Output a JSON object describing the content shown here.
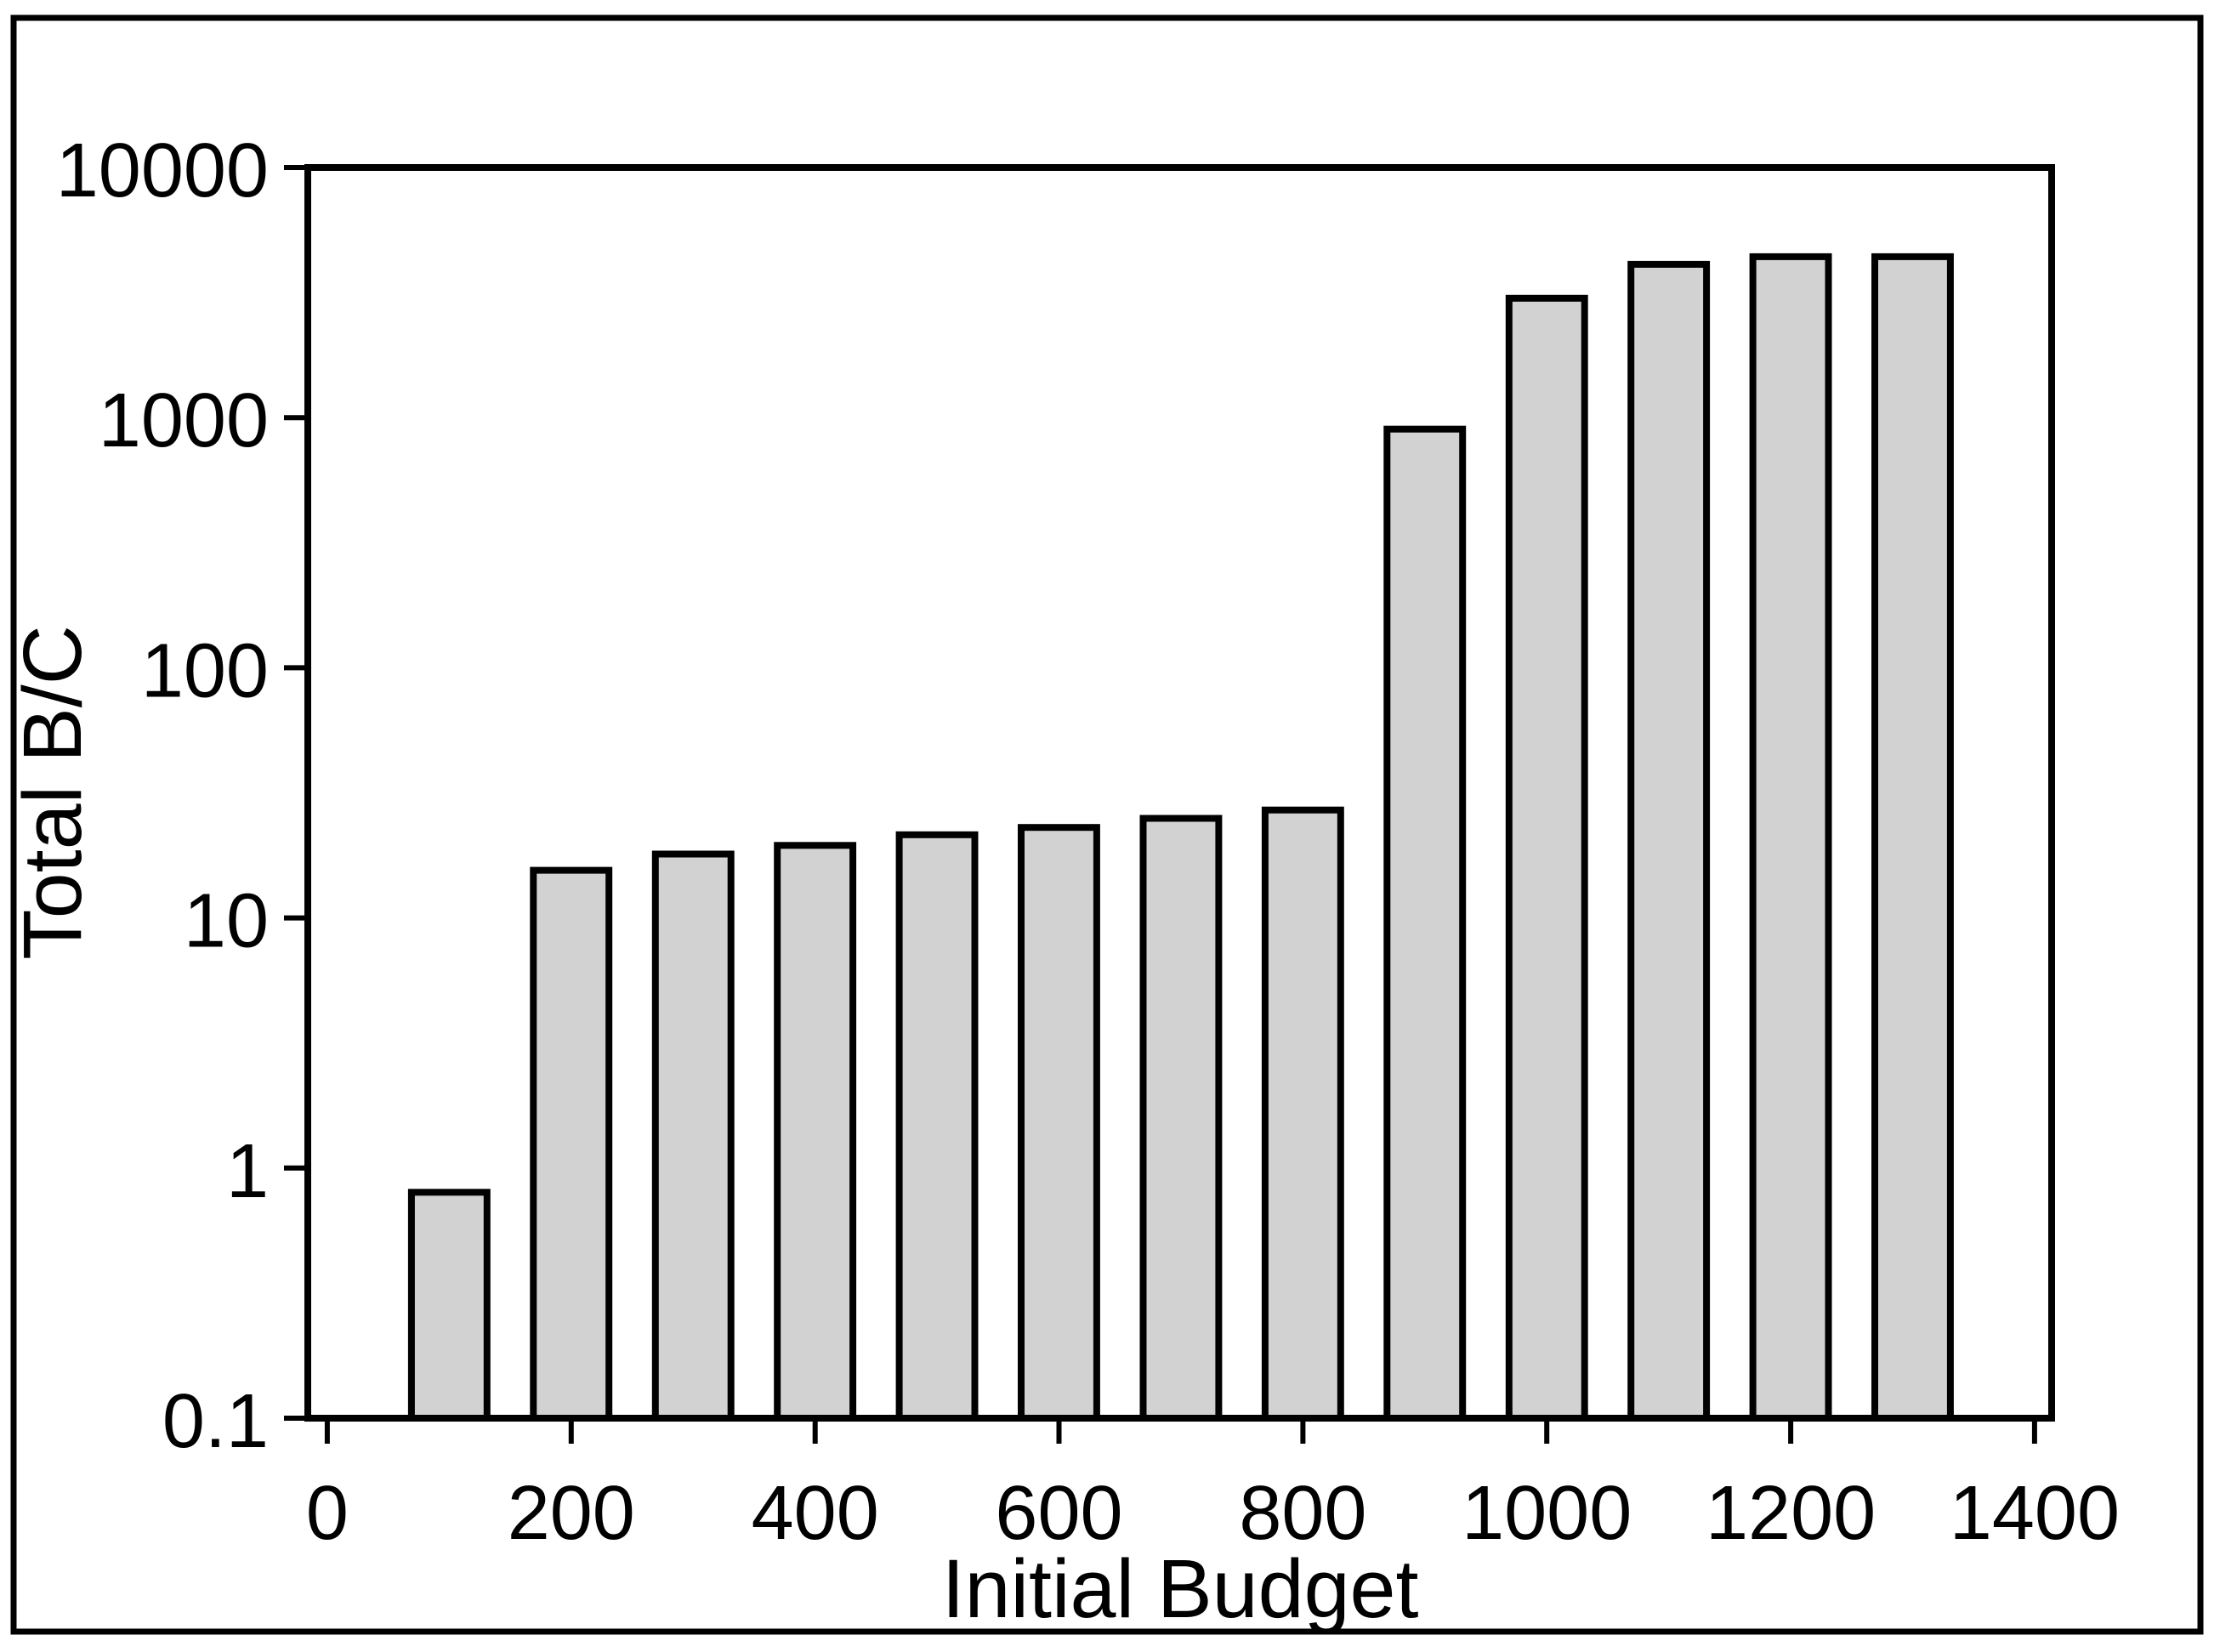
{
  "chart_data": {
    "type": "bar",
    "title": "",
    "xlabel": "Initial Budget",
    "ylabel": "Total B/C",
    "x": [
      100,
      200,
      300,
      400,
      500,
      600,
      700,
      800,
      900,
      1000,
      1100,
      1200,
      1300
    ],
    "values": [
      0.8,
      15.5,
      18,
      19.5,
      21.5,
      23,
      25,
      27,
      900,
      3000,
      4100,
      4400,
      4400
    ],
    "series_name": "Total B/C",
    "x_tick_values": [
      0,
      200,
      400,
      600,
      800,
      1000,
      1200,
      1400
    ],
    "x_tick_labels": [
      "0",
      "200",
      "400",
      "600",
      "800",
      "1000",
      "1200",
      "1400"
    ],
    "y_tick_values": [
      0.1,
      1,
      10,
      100,
      1000,
      10000
    ],
    "y_tick_labels": [
      "0.1",
      "1",
      "10",
      "100",
      "1000",
      "10000"
    ],
    "xlim": [
      -16,
      1414
    ],
    "ylim": [
      0.1,
      10000
    ],
    "y_scale": "log",
    "bar_width_x_units": 62,
    "grid": false,
    "legend": null,
    "colors": {
      "bar_fill": "#d2d2d2",
      "bar_edge": "#000000",
      "axis": "#000000",
      "text": "#000000",
      "background": "#ffffff"
    }
  }
}
